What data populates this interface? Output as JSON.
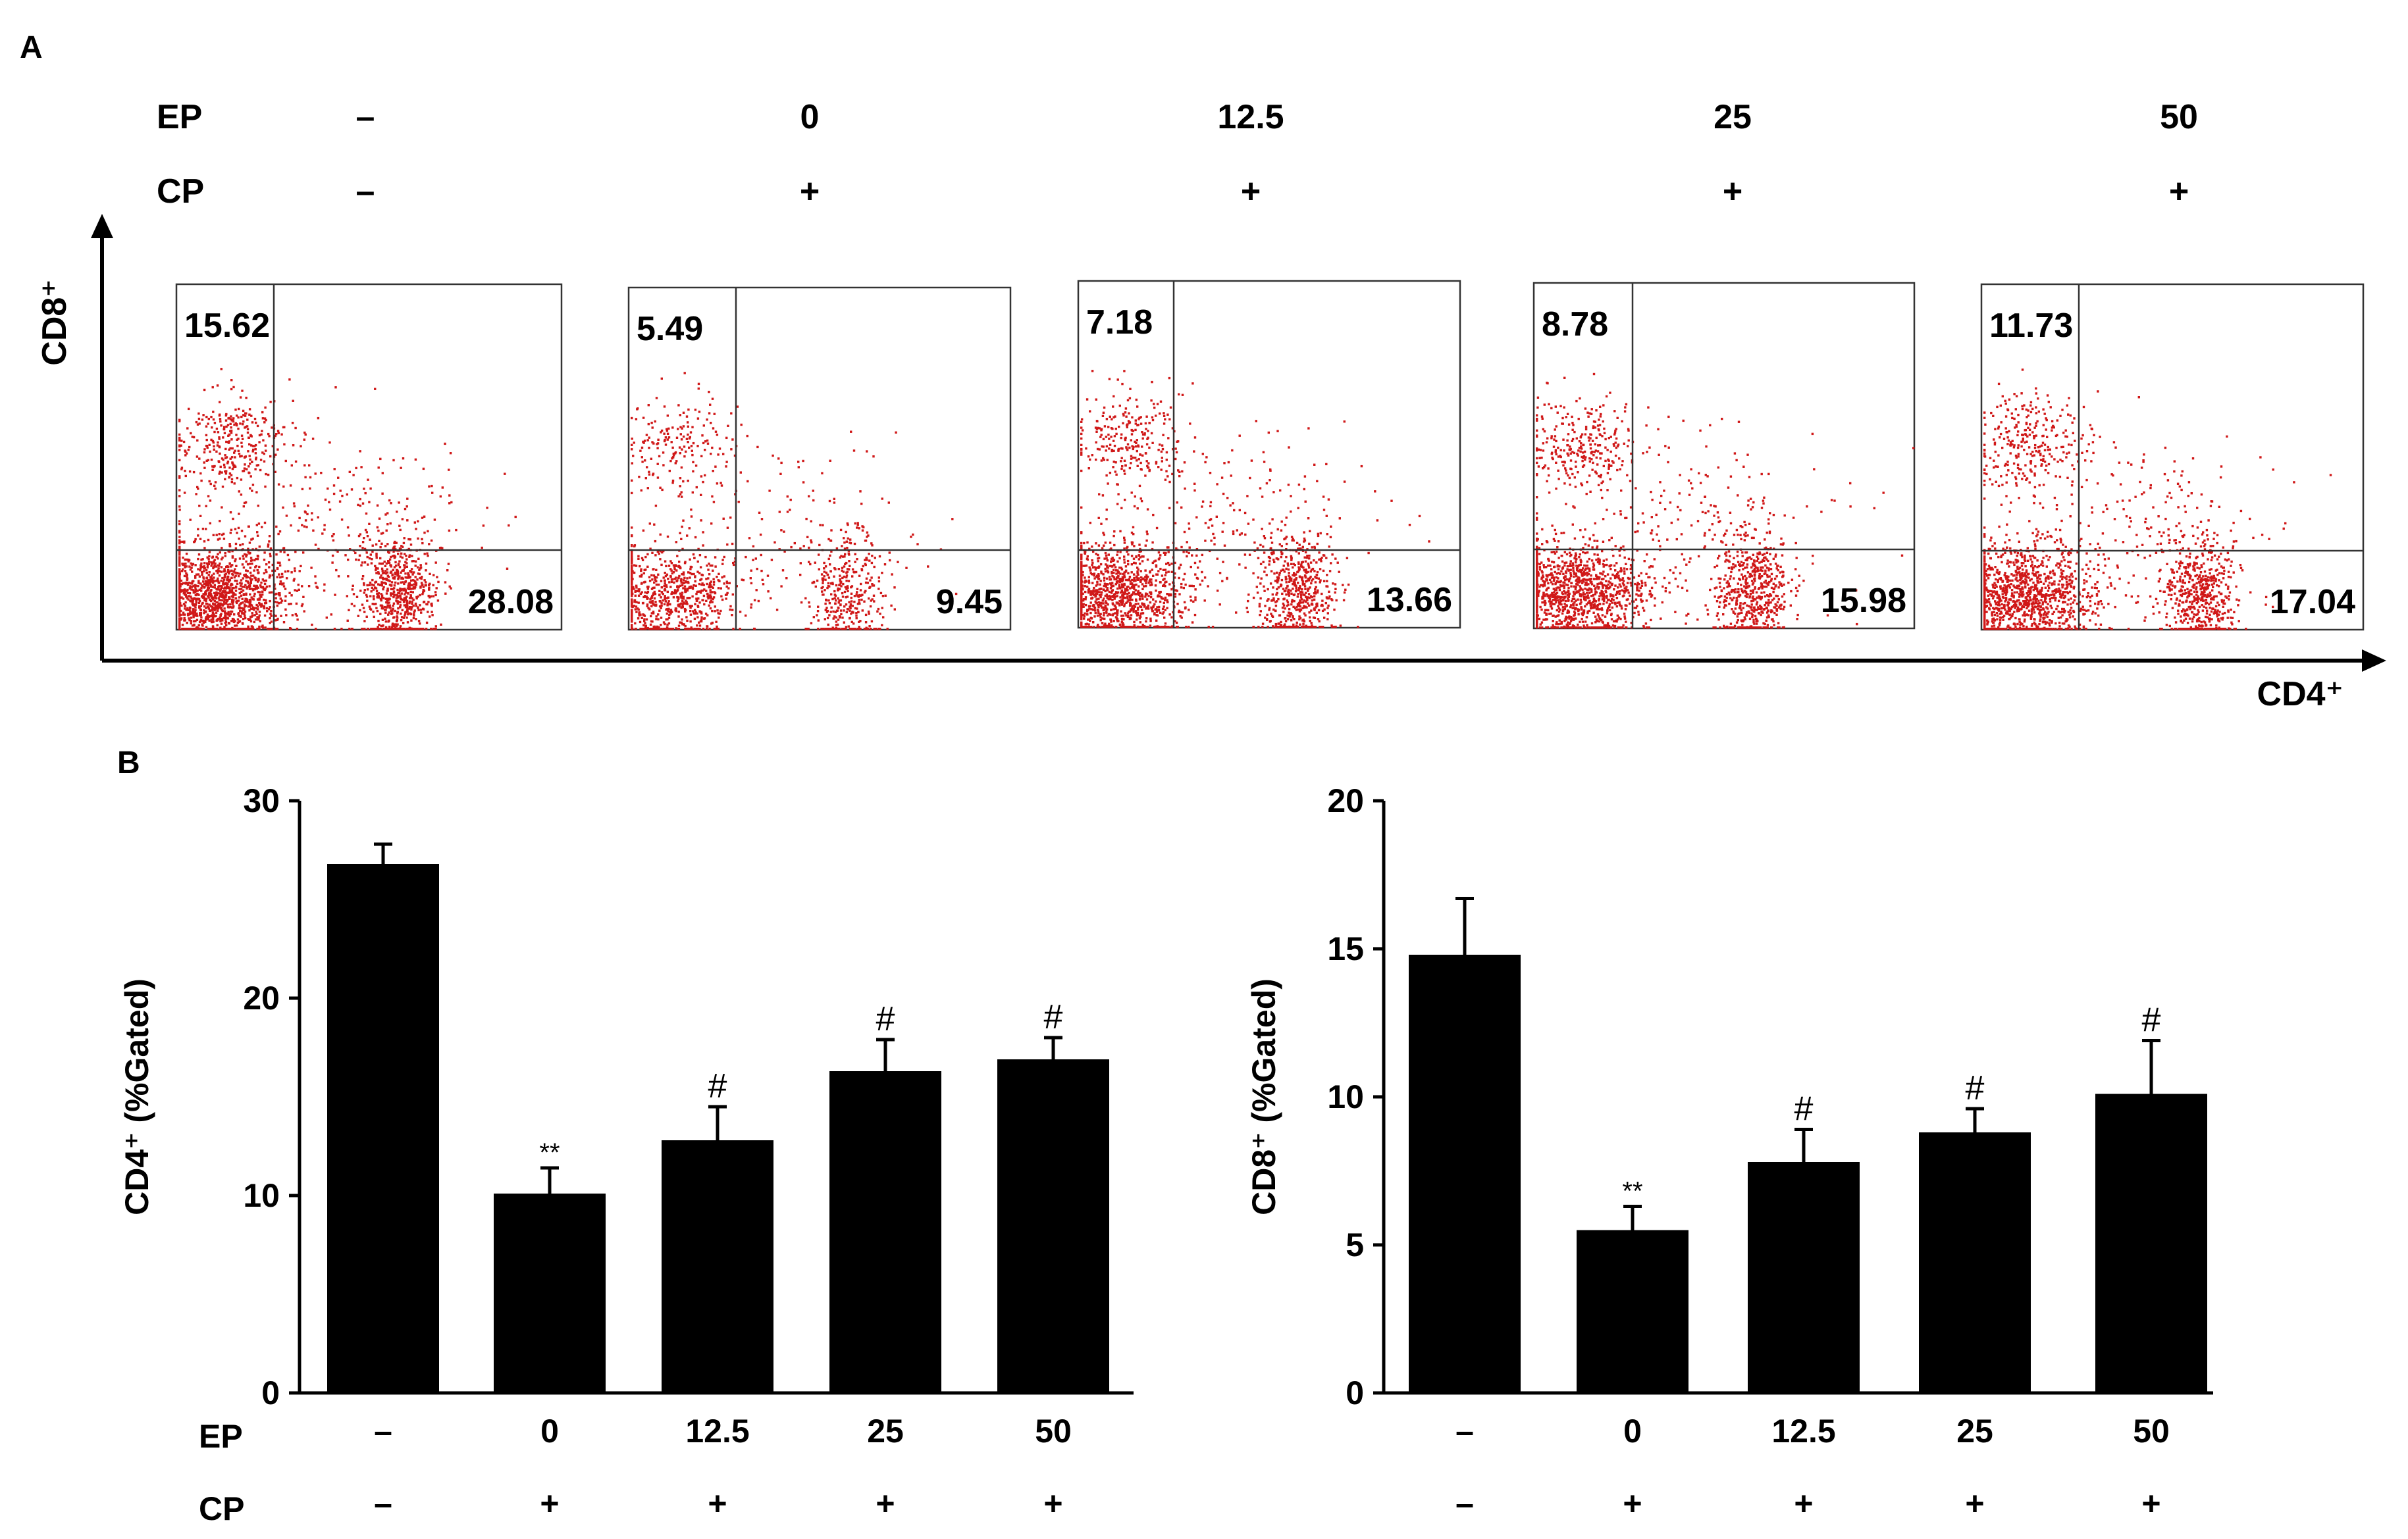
{
  "panel_labels": {
    "a": "A",
    "b": "B"
  },
  "colors": {
    "dot": "#d01818",
    "bar": "#000000",
    "axis": "#000000"
  },
  "panel_a": {
    "row_labels": {
      "ep": "EP",
      "cp": "CP"
    },
    "ep_values": [
      "–",
      "0",
      "12.5",
      "25",
      "50"
    ],
    "cp_values": [
      "–",
      "+",
      "+",
      "+",
      "+"
    ],
    "y_axis_label": "CD8⁺",
    "x_axis_label": "CD4⁺",
    "plots": [
      {
        "cd8_pct": "15.62",
        "cd4_pct": "28.08"
      },
      {
        "cd8_pct": "5.49",
        "cd4_pct": "9.45"
      },
      {
        "cd8_pct": "7.18",
        "cd4_pct": "13.66"
      },
      {
        "cd8_pct": "8.78",
        "cd4_pct": "15.98"
      },
      {
        "cd8_pct": "11.73",
        "cd4_pct": "17.04"
      }
    ]
  },
  "chart_data": [
    {
      "type": "bar",
      "title": "",
      "xlabel": "",
      "ylabel": "CD4⁺ (%Gated)",
      "ylim": [
        0,
        30
      ],
      "yticks": [
        "0",
        "10",
        "20",
        "30"
      ],
      "row_labels": {
        "ep": "EP",
        "cp": "CP"
      },
      "ep_values": [
        "–",
        "0",
        "12.5",
        "25",
        "50"
      ],
      "cp_values": [
        "–",
        "+",
        "+",
        "+",
        "+"
      ],
      "values": [
        26.8,
        10.1,
        12.8,
        16.3,
        16.9
      ],
      "errors": [
        1.0,
        1.3,
        1.7,
        1.6,
        1.1
      ],
      "annotations": [
        "",
        "**",
        "#",
        "#",
        "#"
      ]
    },
    {
      "type": "bar",
      "title": "",
      "xlabel": "",
      "ylabel": "CD8⁺ (%Gated)",
      "ylim": [
        0,
        20
      ],
      "yticks": [
        "0",
        "5",
        "10",
        "15",
        "20"
      ],
      "row_labels": {
        "ep": "EP",
        "cp": "CP"
      },
      "ep_values": [
        "–",
        "0",
        "12.5",
        "25",
        "50"
      ],
      "cp_values": [
        "–",
        "+",
        "+",
        "+",
        "+"
      ],
      "values": [
        14.8,
        5.5,
        7.8,
        8.8,
        10.1
      ],
      "errors": [
        1.9,
        0.8,
        1.1,
        0.8,
        1.8
      ],
      "annotations": [
        "",
        "**",
        "#",
        "#",
        "#"
      ]
    }
  ]
}
